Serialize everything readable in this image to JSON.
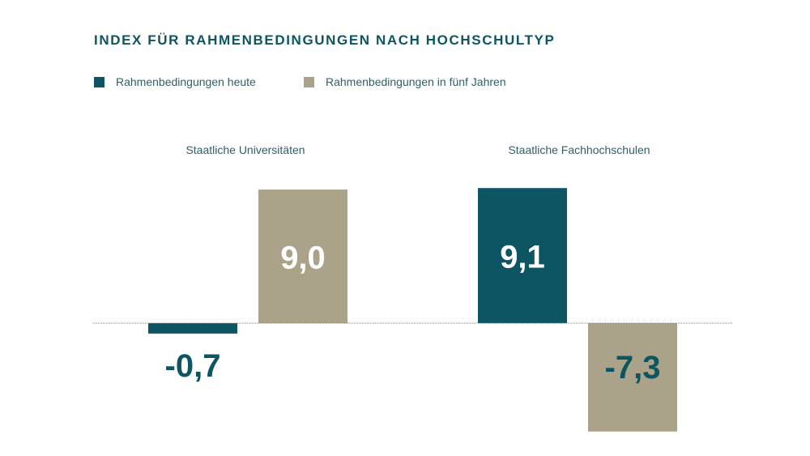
{
  "chart_data": {
    "type": "bar",
    "title": "INDEX FÜR RAHMENBEDINGUNGEN NACH HOCHSCHULTYP",
    "categories": [
      "Staatliche Universitäten",
      "Staatliche Fachhochschulen"
    ],
    "series": [
      {
        "name": "Rahmenbedingungen heute",
        "color": "#0e5563",
        "values": [
          -0.7,
          9.1
        ],
        "labels": [
          "-0,7",
          "9,1"
        ]
      },
      {
        "name": "Rahmenbedingungen in fünf Jahren",
        "color": "#aba389",
        "values": [
          9.0,
          -7.3
        ],
        "labels": [
          "9,0",
          "-7,3"
        ]
      }
    ],
    "xlabel": "",
    "ylabel": "",
    "ylim": [
      -7.3,
      9.1
    ],
    "grid": false,
    "legend": "top-left"
  }
}
